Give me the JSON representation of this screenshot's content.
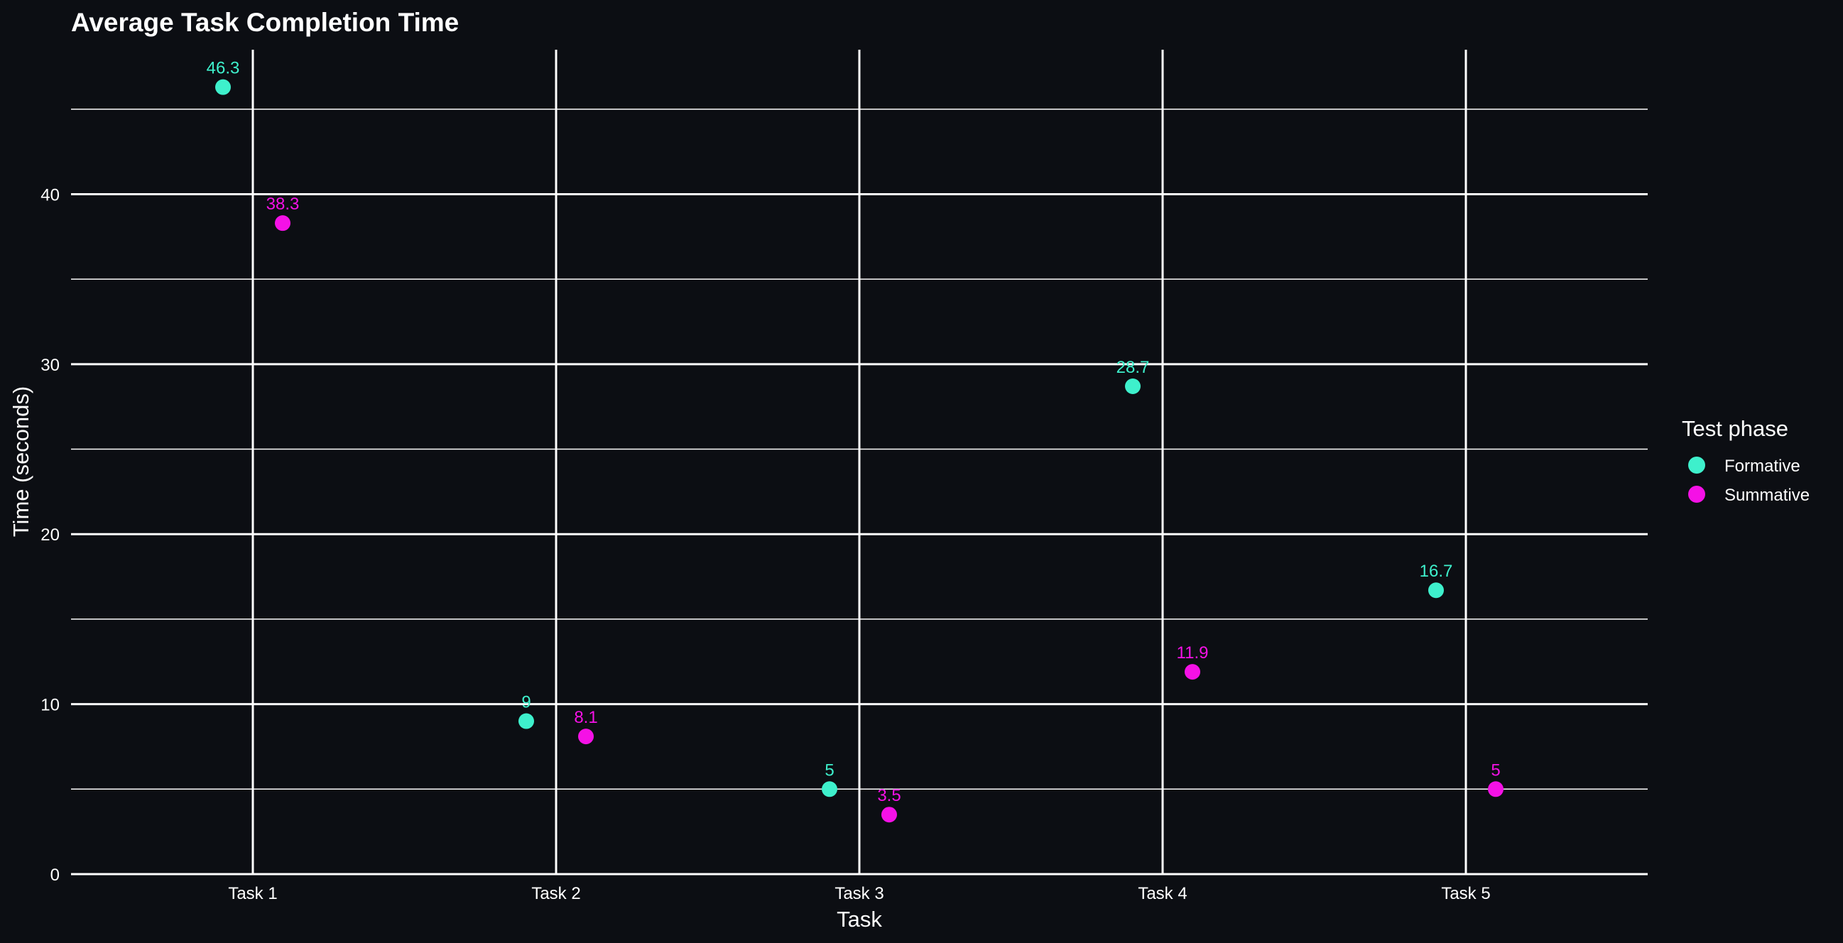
{
  "chart_data": {
    "type": "scatter",
    "title": "Average Task Completion Time",
    "xlabel": "Task",
    "ylabel": "Time (seconds)",
    "categories": [
      "Task 1",
      "Task 2",
      "Task 3",
      "Task 4",
      "Task 5"
    ],
    "ylim": [
      0,
      48.5
    ],
    "y_ticks": [
      0,
      10,
      20,
      30,
      40
    ],
    "y_tick_labels": [
      "0",
      "10",
      "20",
      "30",
      "40"
    ],
    "y_minor_ticks": [
      5,
      15,
      25,
      35,
      45
    ],
    "grid": true,
    "legend": {
      "title": "Test phase",
      "placement": "right"
    },
    "series": [
      {
        "name": "Formative",
        "color": "#3ef0cc",
        "values": [
          46.3,
          9,
          5,
          28.7,
          16.7
        ],
        "labels": [
          "46.3",
          "9",
          "5",
          "28.7",
          "16.7"
        ]
      },
      {
        "name": "Summative",
        "color": "#f511e6",
        "values": [
          38.3,
          8.1,
          3.5,
          11.9,
          5
        ],
        "labels": [
          "38.3",
          "8.1",
          "3.5",
          "11.9",
          "5"
        ]
      }
    ]
  }
}
